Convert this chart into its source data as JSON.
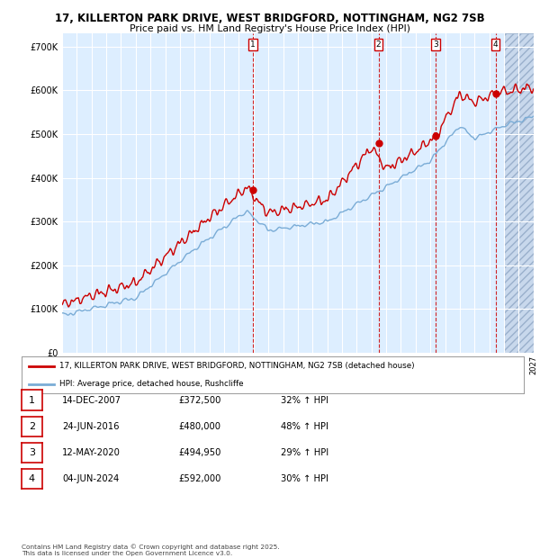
{
  "title_line1": "17, KILLERTON PARK DRIVE, WEST BRIDGFORD, NOTTINGHAM, NG2 7SB",
  "title_line2": "Price paid vs. HM Land Registry's House Price Index (HPI)",
  "legend_label1": "17, KILLERTON PARK DRIVE, WEST BRIDGFORD, NOTTINGHAM, NG2 7SB (detached house)",
  "legend_label2": "HPI: Average price, detached house, Rushcliffe",
  "line1_color": "#cc0000",
  "line2_color": "#7aacd6",
  "plot_bg_color": "#ddeeff",
  "hatch_start": 2025.0,
  "yticks": [
    0,
    100000,
    200000,
    300000,
    400000,
    500000,
    600000,
    700000
  ],
  "ytick_labels": [
    "£0",
    "£100K",
    "£200K",
    "£300K",
    "£400K",
    "£500K",
    "£600K",
    "£700K"
  ],
  "xmin": 1995.0,
  "xmax": 2027.0,
  "ymin": 0,
  "ymax": 730000,
  "sale_events": [
    {
      "num": 1,
      "year": 2007.96,
      "price": 372500,
      "label": "1"
    },
    {
      "num": 2,
      "year": 2016.48,
      "price": 480000,
      "label": "2"
    },
    {
      "num": 3,
      "year": 2020.36,
      "price": 494950,
      "label": "3"
    },
    {
      "num": 4,
      "year": 2024.42,
      "price": 592000,
      "label": "4"
    }
  ],
  "footnote": "Contains HM Land Registry data © Crown copyright and database right 2025.\nThis data is licensed under the Open Government Licence v3.0.",
  "table_rows": [
    [
      "1",
      "14-DEC-2007",
      "£372,500",
      "32% ↑ HPI"
    ],
    [
      "2",
      "24-JUN-2016",
      "£480,000",
      "48% ↑ HPI"
    ],
    [
      "3",
      "12-MAY-2020",
      "£494,950",
      "29% ↑ HPI"
    ],
    [
      "4",
      "04-JUN-2024",
      "£592,000",
      "30% ↑ HPI"
    ]
  ]
}
